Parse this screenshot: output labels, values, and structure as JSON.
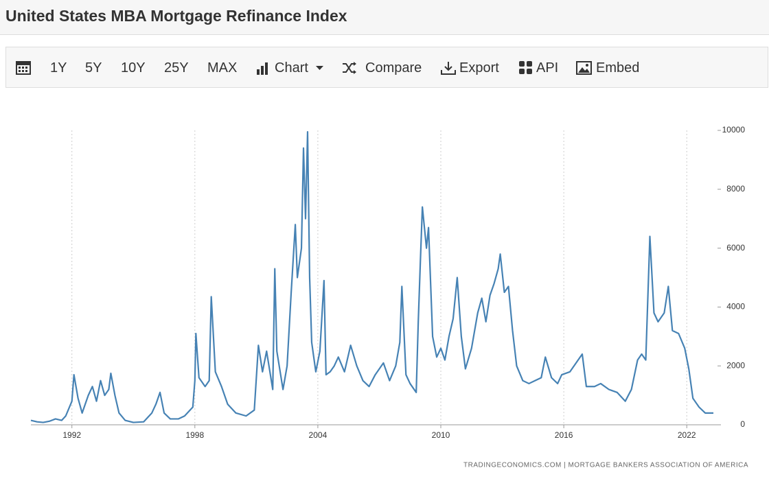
{
  "header": {
    "title": "United States MBA Mortgage Refinance Index"
  },
  "toolbar": [
    "1Y",
    "5Y",
    "10Y",
    "25Y",
    "MAX",
    "Chart",
    "Compare",
    "Export",
    "API",
    "Embed"
  ],
  "chart_data": {
    "type": "line",
    "source": "TRADINGECONOMICS.COM | MORTGAGE BANKERS ASSOCIATION OF AMERICA",
    "x": [
      1990.0,
      1990.3,
      1990.6,
      1990.9,
      1991.2,
      1991.5,
      1991.7,
      1992.0,
      1992.1,
      1992.3,
      1992.5,
      1992.8,
      1993.0,
      1993.2,
      1993.4,
      1993.6,
      1993.8,
      1993.9,
      1994.1,
      1994.3,
      1994.6,
      1995.0,
      1995.5,
      1995.9,
      1996.1,
      1996.3,
      1996.5,
      1996.8,
      1997.2,
      1997.5,
      1997.9,
      1998.0,
      1998.05,
      1998.2,
      1998.5,
      1998.7,
      1998.8,
      1999.0,
      1999.3,
      1999.6,
      2000.0,
      2000.5,
      2000.9,
      2001.1,
      2001.3,
      2001.5,
      2001.8,
      2001.9,
      2002.0,
      2002.3,
      2002.5,
      2002.7,
      2002.9,
      2003.0,
      2003.2,
      2003.3,
      2003.4,
      2003.5,
      2003.6,
      2003.7,
      2003.9,
      2004.1,
      2004.3,
      2004.4,
      2004.6,
      2004.8,
      2005.0,
      2005.3,
      2005.6,
      2005.9,
      2006.2,
      2006.5,
      2006.8,
      2007.2,
      2007.5,
      2007.8,
      2008.0,
      2008.1,
      2008.3,
      2008.5,
      2008.8,
      2008.9,
      2009.0,
      2009.1,
      2009.3,
      2009.4,
      2009.6,
      2009.8,
      2010.0,
      2010.2,
      2010.4,
      2010.6,
      2010.8,
      2011.0,
      2011.2,
      2011.5,
      2011.8,
      2012.0,
      2012.2,
      2012.4,
      2012.6,
      2012.8,
      2012.9,
      2013.1,
      2013.3,
      2013.5,
      2013.7,
      2014.0,
      2014.3,
      2014.6,
      2014.9,
      2015.1,
      2015.4,
      2015.7,
      2015.9,
      2016.3,
      2016.6,
      2016.9,
      2017.1,
      2017.5,
      2017.8,
      2018.2,
      2018.6,
      2019.0,
      2019.3,
      2019.6,
      2019.8,
      2020.0,
      2020.2,
      2020.4,
      2020.6,
      2020.9,
      2021.1,
      2021.3,
      2021.6,
      2021.9,
      2022.1,
      2022.3,
      2022.6,
      2022.9,
      2023.1,
      2023.3
    ],
    "series": [
      {
        "name": "Refinance Index",
        "color": "#4682b4",
        "values": [
          150,
          100,
          80,
          120,
          200,
          150,
          300,
          800,
          1700,
          900,
          400,
          1000,
          1300,
          800,
          1500,
          1000,
          1200,
          1750,
          1000,
          400,
          150,
          80,
          100,
          400,
          700,
          1100,
          400,
          200,
          200,
          300,
          600,
          1500,
          3100,
          1600,
          1300,
          1500,
          4350,
          1800,
          1300,
          700,
          400,
          300,
          500,
          2700,
          1800,
          2500,
          1200,
          5300,
          2500,
          1200,
          2000,
          4500,
          6800,
          5000,
          6000,
          9400,
          7000,
          9950,
          5000,
          2800,
          1800,
          2500,
          4900,
          1700,
          1800,
          2000,
          2300,
          1800,
          2700,
          2000,
          1500,
          1300,
          1700,
          2100,
          1500,
          2000,
          2800,
          4700,
          1700,
          1400,
          1100,
          3500,
          5500,
          7400,
          6000,
          6700,
          3000,
          2300,
          2600,
          2200,
          3000,
          3600,
          5000,
          3000,
          1900,
          2600,
          3800,
          4300,
          3500,
          4400,
          4800,
          5300,
          5800,
          4500,
          4700,
          3200,
          2000,
          1500,
          1400,
          1500,
          1600,
          2300,
          1600,
          1400,
          1700,
          1800,
          2100,
          2400,
          1300,
          1300,
          1400,
          1200,
          1100,
          800,
          1200,
          2200,
          2400,
          2200,
          6400,
          3800,
          3500,
          3800,
          4700,
          3200,
          3100,
          2600,
          1900,
          900,
          600,
          400,
          400,
          400
        ]
      }
    ],
    "xlim": [
      1990,
      2023.5
    ],
    "xticks": [
      1992,
      1998,
      2004,
      2010,
      2016,
      2022
    ],
    "ylim": [
      0,
      10000
    ],
    "yticks": [
      0,
      2000,
      4000,
      6000,
      8000,
      10000
    ],
    "grid": true
  }
}
